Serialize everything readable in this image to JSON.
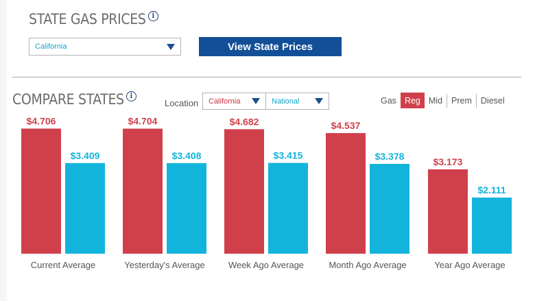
{
  "state_section": {
    "title": "STATE GAS PRICES",
    "info_icon": "info-icon",
    "selected_state": "California",
    "view_button_label": "View State Prices"
  },
  "compare_section": {
    "title": "COMPARE STATES",
    "info_icon": "info-icon",
    "location_label": "Location",
    "location_a": "California",
    "location_b": "National",
    "fuel_tabs": [
      {
        "label": "Gas",
        "active": false
      },
      {
        "label": "Reg",
        "active": true
      },
      {
        "label": "Mid",
        "active": false
      },
      {
        "label": "Prem",
        "active": false
      },
      {
        "label": "Diesel",
        "active": false
      }
    ]
  },
  "colors": {
    "california": "#d0404b",
    "national": "#13b4dc",
    "button": "#134f96",
    "caret": "#1b4f8c"
  },
  "chart_data": {
    "type": "bar",
    "categories": [
      "Current Average",
      "Yesterday's Average",
      "Week Ago Average",
      "Month Ago Average",
      "Year Ago Average"
    ],
    "series": [
      {
        "values": [
          4.706,
          4.704,
          4.682,
          4.537,
          3.173
        ],
        "labels": [
          "$4.706",
          "$4.704",
          "$4.682",
          "$4.537",
          "$3.173"
        ]
      },
      {
        "values": [
          3.409,
          3.408,
          3.415,
          3.378,
          2.111
        ],
        "labels": [
          "$3.409",
          "$3.408",
          "$3.415",
          "$3.378",
          "$2.111"
        ]
      }
    ],
    "ylim": [
      0,
      4.9
    ],
    "grid": false
  }
}
